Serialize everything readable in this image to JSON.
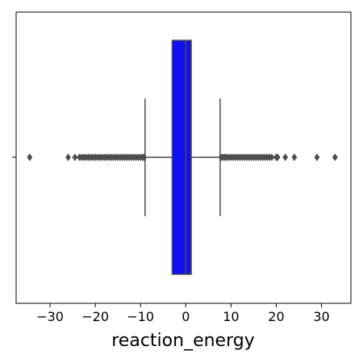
{
  "chart_data": {
    "type": "box",
    "orientation": "horizontal",
    "title": "",
    "xlabel": "reaction_energy",
    "ylabel": "",
    "xlim": [
      -37.5,
      36.5
    ],
    "xticks": [
      -30,
      -20,
      -10,
      0,
      10,
      20,
      30
    ],
    "xtick_labels": [
      "−30",
      "−20",
      "−10",
      "0",
      "10",
      "20",
      "30"
    ],
    "grid": false,
    "legend": "none",
    "box": {
      "whisker_low": -9,
      "q1": -3,
      "median": 0,
      "q3": 1.2,
      "whisker_high": 7.6,
      "fill_color": "#0f0ff0",
      "line_color": "#4d4d4d"
    },
    "outliers": [
      -34.5,
      -26,
      -24.5,
      -23.5,
      -23,
      -22.5,
      -22,
      -21.5,
      -21,
      -20.5,
      -20,
      -19.5,
      -19,
      -18.5,
      -18,
      -17.5,
      -17,
      -16.5,
      -16,
      -15.5,
      -15,
      -14.5,
      -14,
      -13.5,
      -13,
      -12.5,
      -12,
      -11.5,
      -11,
      -10.5,
      -10,
      -9.5,
      -9.2,
      7.8,
      8.2,
      8.6,
      9,
      9.5,
      10,
      10.5,
      11,
      11.5,
      12,
      12.5,
      13,
      13.5,
      14,
      14.5,
      15,
      15.5,
      16,
      16.5,
      17,
      17.5,
      18,
      18.5,
      19,
      20,
      20.3,
      22,
      24,
      29,
      33
    ]
  }
}
